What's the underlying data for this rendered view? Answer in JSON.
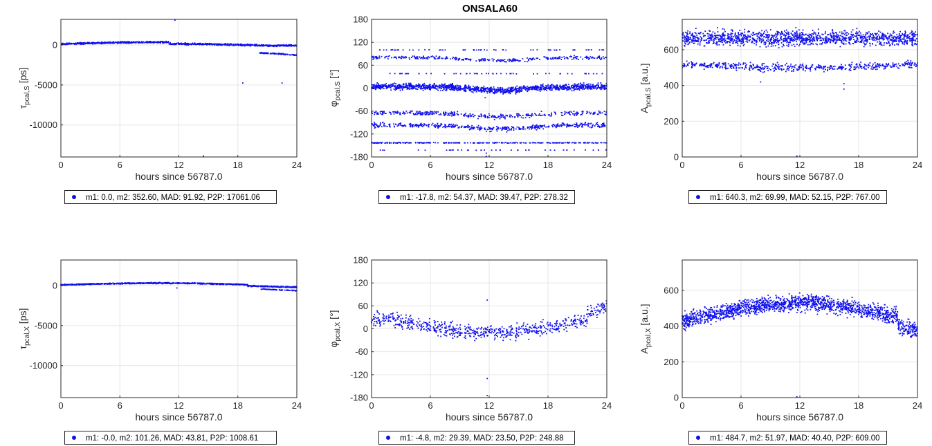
{
  "figure_title": "ONSALA60",
  "series_color": "#1010ee",
  "chart_data": [
    {
      "id": "tau_S",
      "type": "scatter",
      "ylabel": "τ pcal,S [ps]",
      "xlabel": "hours since 56787.0",
      "xlim": [
        0,
        24
      ],
      "ylim": [
        -14000,
        3200
      ],
      "xticks": [
        0,
        6,
        12,
        18,
        24
      ],
      "yticks": [
        0,
        -5000,
        -10000
      ],
      "grid": true,
      "legend": "m1:    0.0, m2: 352.60, MAD: 91.92, P2P: 17061.06"
    },
    {
      "id": "phi_S",
      "type": "scatter",
      "ylabel": "φ pcal,S [°]",
      "xlabel": "hours since 56787.0",
      "xlim": [
        0,
        24
      ],
      "ylim": [
        -180,
        180
      ],
      "xticks": [
        0,
        6,
        12,
        18,
        24
      ],
      "yticks": [
        180,
        120,
        60,
        0,
        -60,
        -120,
        -180
      ],
      "grid": true,
      "legend": "m1:  -17.8, m2: 54.37, MAD: 39.47, P2P: 278.32"
    },
    {
      "id": "amp_S",
      "type": "scatter",
      "ylabel": "A pcal,S [a.u.]",
      "xlabel": "hours since 56787.0",
      "xlim": [
        0,
        24
      ],
      "ylim": [
        0,
        770
      ],
      "xticks": [
        0,
        6,
        12,
        18,
        24
      ],
      "yticks": [
        600,
        400,
        200,
        0
      ],
      "grid": true,
      "legend": "m1:  640.3, m2: 69.99, MAD: 52.15, P2P: 767.00"
    },
    {
      "id": "tau_X",
      "type": "scatter",
      "ylabel": "τ pcal,X [ps]",
      "xlabel": "hours since 56787.0",
      "xlim": [
        0,
        24
      ],
      "ylim": [
        -14000,
        3200
      ],
      "xticks": [
        0,
        6,
        12,
        18,
        24
      ],
      "yticks": [
        0,
        -5000,
        -10000
      ],
      "grid": true,
      "legend": "m1:   -0.0, m2: 101.26, MAD: 43.81, P2P: 1008.61"
    },
    {
      "id": "phi_X",
      "type": "scatter",
      "ylabel": "φ pcal,X [°]",
      "xlabel": "hours since 56787.0",
      "xlim": [
        0,
        24
      ],
      "ylim": [
        -180,
        180
      ],
      "xticks": [
        0,
        6,
        12,
        18,
        24
      ],
      "yticks": [
        180,
        120,
        60,
        0,
        -60,
        -120,
        -180
      ],
      "grid": true,
      "legend": "m1:   -4.8, m2: 29.39, MAD: 23.50, P2P: 248.88"
    },
    {
      "id": "amp_X",
      "type": "scatter",
      "ylabel": "A pcal,X [a.u.]",
      "xlabel": "hours since 56787.0",
      "xlim": [
        0,
        24
      ],
      "ylim": [
        0,
        770
      ],
      "xticks": [
        0,
        6,
        12,
        18,
        24
      ],
      "yticks": [
        600,
        400,
        200,
        0
      ],
      "grid": true,
      "legend": "m1:  484.7, m2: 51.97, MAD: 40.40, P2P: 609.00"
    }
  ]
}
